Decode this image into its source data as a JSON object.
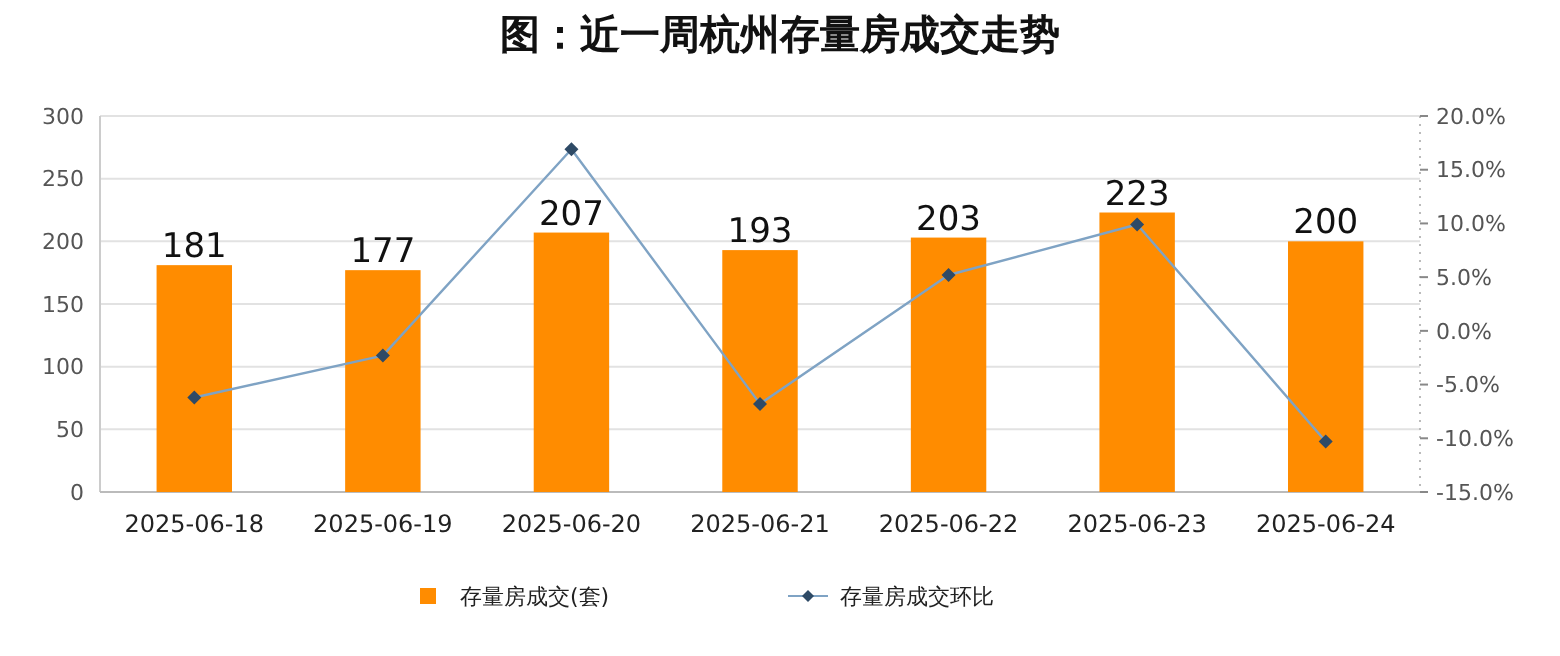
{
  "chart_data": {
    "type": "bar",
    "title": "图：近一周杭州存量房成交走势",
    "categories": [
      "2025-06-18",
      "2025-06-19",
      "2025-06-20",
      "2025-06-21",
      "2025-06-22",
      "2025-06-23",
      "2025-06-24"
    ],
    "series": [
      {
        "name": "存量房成交(套)",
        "color": "#ff8c00",
        "values": [
          181,
          177,
          207,
          193,
          203,
          223,
          200
        ],
        "value_labels": [
          "181",
          "177",
          "207",
          "193",
          "203",
          "223",
          "200"
        ]
      },
      {
        "name": "存量房成交环比",
        "type": "line",
        "axis": "y2",
        "color": "#7fa3c4",
        "marker": "diamond",
        "values": [
          -6.2,
          -2.3,
          16.9,
          -6.8,
          5.2,
          9.9,
          -10.3
        ]
      }
    ],
    "ylim": [
      0,
      300
    ],
    "yticks": [
      0,
      50,
      100,
      150,
      200,
      250,
      300
    ],
    "y2lim": [
      -15,
      20
    ],
    "y2ticks": [
      {
        "value": -15,
        "label": "-15.0%"
      },
      {
        "value": -10,
        "label": "-10.0%"
      },
      {
        "value": -5,
        "label": "-5.0%"
      },
      {
        "value": 0,
        "label": "0.0%"
      },
      {
        "value": 5,
        "label": "5.0%"
      },
      {
        "value": 10,
        "label": "10.0%"
      },
      {
        "value": 15,
        "label": "15.0%"
      },
      {
        "value": 20,
        "label": "20.0%"
      }
    ],
    "grid": "y",
    "legend": "bottom"
  }
}
